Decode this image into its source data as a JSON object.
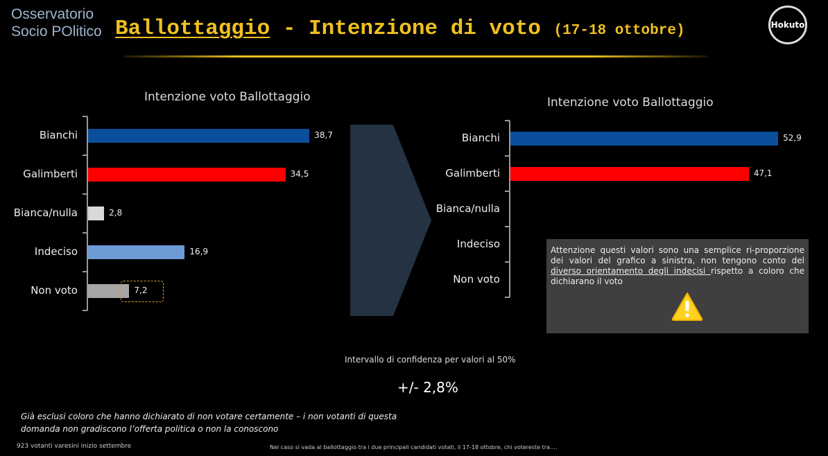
{
  "header": {
    "logo_line1": "Osservatorio",
    "logo_line2": "Socio POlitico",
    "title_main": "Ballottaggio",
    "title_rest": " - Intenzione di voto ",
    "title_dates": "(17-18 ottobre)",
    "badge": "Hokuto"
  },
  "colors": {
    "bianchi": "#0b4f9c",
    "galimberti": "#ff0000",
    "bianca_nulla": "#d9d9d9",
    "indeciso": "#6c9bd5",
    "non_voto": "#a6a6a6",
    "accent": "#f0c020"
  },
  "chart_data": [
    {
      "type": "bar",
      "orientation": "horizontal",
      "title": "Intenzione voto Ballottaggio",
      "categories": [
        "Bianchi",
        "Galimberti",
        "Bianca/nulla",
        "Indeciso",
        "Non voto"
      ],
      "values": [
        38.7,
        34.5,
        2.8,
        16.9,
        7.2
      ],
      "value_labels": [
        "38,7",
        "34,5",
        "2,8",
        "16,9",
        "7,2"
      ]
    },
    {
      "type": "bar",
      "orientation": "horizontal",
      "title": "Intenzione voto Ballottaggio",
      "categories": [
        "Bianchi",
        "Galimberti",
        "Bianca/nulla",
        "Indeciso",
        "Non voto"
      ],
      "values": [
        52.9,
        47.1,
        null,
        null,
        null
      ],
      "value_labels": [
        "52,9",
        "47,1",
        "",
        "",
        ""
      ]
    }
  ],
  "note": {
    "text_before": "Attenzione questi valori sono una semplice ri-proporzione dei valori del grafico a sinistra, non tengono conto del ",
    "text_underlined": "diverso orientamento degli indecisi ",
    "text_after": "rispetto a coloro che dichiarano il voto",
    "icon": "warning-icon"
  },
  "confidence": {
    "label": "Intervallo di confidenza per valori al 50%",
    "value": "+/- 2,8%"
  },
  "footer": {
    "italic_line1": "Già esclusi coloro che hanno dichiarato di non votare certamente – i non votanti di questa",
    "italic_line2": "domanda non gradiscono l’offerta politica o non la conoscono",
    "sample": "923 votanti varesini inizio settembre",
    "question": "Nel caso si vada al ballottaggio tra i due principali candidati votati, il 17-18 ottobre, chi votereste tra…."
  }
}
